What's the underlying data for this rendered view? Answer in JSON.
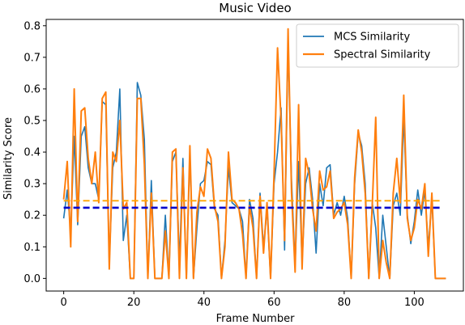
{
  "chart_data": {
    "type": "line",
    "title": "Music Video",
    "xlabel": "Frame Number",
    "ylabel": "Similarity Score",
    "xlim": [
      -5,
      114
    ],
    "ylim": [
      -0.04,
      0.82
    ],
    "xticks": [
      0,
      20,
      40,
      60,
      80,
      100
    ],
    "yticks": [
      0.0,
      0.1,
      0.2,
      0.3,
      0.4,
      0.5,
      0.6,
      0.7,
      0.8
    ],
    "ytick_labels": [
      "0.0",
      "0.1",
      "0.2",
      "0.3",
      "0.4",
      "0.5",
      "0.6",
      "0.7",
      "0.8"
    ],
    "grid": false,
    "legend": "top-right",
    "series": [
      {
        "name": "MCS Similarity",
        "color": "#1f77b4",
        "style": "solid",
        "y": [
          0.19,
          0.28,
          0.15,
          0.45,
          0.17,
          0.45,
          0.48,
          0.35,
          0.3,
          0.3,
          0.25,
          0.56,
          0.55,
          0.05,
          0.35,
          0.4,
          0.6,
          0.12,
          0.2,
          0.0,
          0.0,
          0.62,
          0.58,
          0.44,
          0.0,
          0.31,
          0.0,
          0.0,
          0.0,
          0.2,
          0.0,
          0.37,
          0.4,
          0.05,
          0.38,
          0.0,
          0.4,
          0.0,
          0.16,
          0.3,
          0.31,
          0.37,
          0.36,
          0.22,
          0.2,
          0.0,
          0.12,
          0.35,
          0.24,
          0.23,
          0.22,
          0.18,
          0.0,
          0.25,
          0.19,
          0.0,
          0.27,
          0.1,
          0.22,
          0.0,
          0.3,
          0.4,
          0.54,
          0.09,
          0.74,
          0.31,
          0.04,
          0.37,
          0.05,
          0.3,
          0.35,
          0.25,
          0.08,
          0.3,
          0.23,
          0.35,
          0.36,
          0.2,
          0.24,
          0.2,
          0.26,
          0.19,
          0.0,
          0.3,
          0.46,
          0.42,
          0.3,
          0.0,
          0.24,
          0.16,
          0.0,
          0.2,
          0.1,
          0.0,
          0.23,
          0.27,
          0.2,
          0.51,
          0.2,
          0.11,
          0.18,
          0.28,
          0.2,
          0.28,
          0.1,
          0.25,
          0.0,
          0.0,
          0.0,
          0.0
        ]
      },
      {
        "name": "Spectral Similarity",
        "color": "#ff7f0e",
        "style": "solid",
        "y": [
          0.25,
          0.37,
          0.1,
          0.6,
          0.18,
          0.53,
          0.54,
          0.38,
          0.3,
          0.4,
          0.24,
          0.57,
          0.59,
          0.03,
          0.4,
          0.37,
          0.5,
          0.22,
          0.24,
          0.0,
          0.0,
          0.57,
          0.57,
          0.36,
          0.0,
          0.27,
          0.0,
          0.0,
          0.0,
          0.15,
          0.0,
          0.4,
          0.41,
          0.0,
          0.35,
          0.0,
          0.42,
          0.0,
          0.21,
          0.29,
          0.26,
          0.41,
          0.38,
          0.23,
          0.18,
          0.0,
          0.1,
          0.4,
          0.25,
          0.24,
          0.22,
          0.14,
          0.0,
          0.23,
          0.16,
          0.0,
          0.26,
          0.08,
          0.24,
          0.0,
          0.33,
          0.73,
          0.5,
          0.12,
          0.79,
          0.27,
          0.02,
          0.55,
          0.03,
          0.38,
          0.33,
          0.22,
          0.15,
          0.34,
          0.28,
          0.29,
          0.34,
          0.19,
          0.21,
          0.22,
          0.24,
          0.17,
          0.0,
          0.32,
          0.47,
          0.4,
          0.27,
          0.0,
          0.23,
          0.51,
          0.0,
          0.12,
          0.05,
          0.0,
          0.27,
          0.38,
          0.24,
          0.58,
          0.19,
          0.12,
          0.16,
          0.25,
          0.22,
          0.3,
          0.07,
          0.27,
          0.0,
          0.0,
          0.0,
          0.0
        ]
      },
      {
        "color": "#0000cc",
        "style": "dashed",
        "constant": 0.224,
        "x_range": [
          0,
          108
        ]
      },
      {
        "color": "#ffa500",
        "style": "dashed",
        "constant": 0.246,
        "x_range": [
          0,
          108
        ]
      }
    ]
  }
}
